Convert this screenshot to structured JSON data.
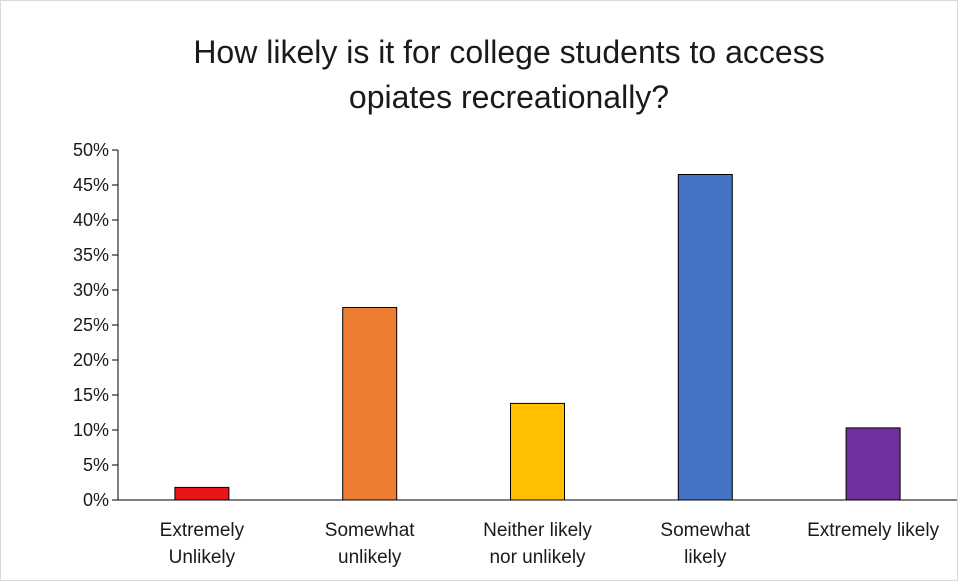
{
  "chart_data": {
    "type": "bar",
    "title_lines": [
      "How likely is it for college students to access",
      "opiates recreationally?"
    ],
    "categories": [
      [
        "Extremely",
        "Unlikely"
      ],
      [
        "Somewhat",
        "unlikely"
      ],
      [
        "Neither likely",
        "nor unlikely"
      ],
      [
        "Somewhat",
        "likely"
      ],
      [
        "Extremely likely"
      ]
    ],
    "values": [
      0.018,
      0.275,
      0.138,
      0.465,
      0.103
    ],
    "colors": [
      "#e8161a",
      "#ed7d31",
      "#ffc000",
      "#4472c4",
      "#7030a0"
    ],
    "ylim": [
      0,
      0.5
    ],
    "yticks": [
      0,
      0.05,
      0.1,
      0.15,
      0.2,
      0.25,
      0.3,
      0.35,
      0.4,
      0.45,
      0.5
    ],
    "ytick_labels": [
      "0%",
      "5%",
      "10%",
      "15%",
      "20%",
      "25%",
      "30%",
      "35%",
      "40%",
      "45%",
      "50%"
    ],
    "grid": false,
    "legend": "none"
  }
}
